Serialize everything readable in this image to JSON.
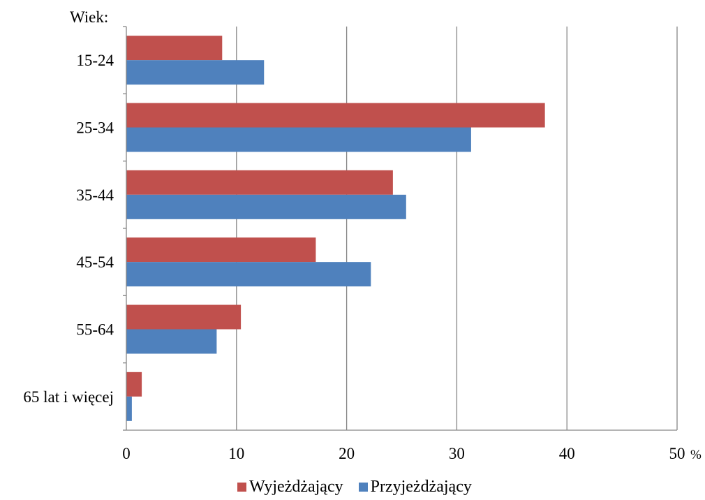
{
  "chart_data": {
    "type": "bar",
    "orientation": "horizontal",
    "category_axis_title": "Wiek:",
    "categories": [
      "15-24",
      "25-34",
      "35-44",
      "45-54",
      "55-64",
      "65 lat i więcej"
    ],
    "series": [
      {
        "name": "Wyjeżdżający",
        "color": "#c0504d",
        "values": [
          8.7,
          38.0,
          24.2,
          17.2,
          10.4,
          1.4
        ]
      },
      {
        "name": "Przyjeżdżający",
        "color": "#4f81bd",
        "values": [
          12.5,
          31.3,
          25.4,
          22.2,
          8.2,
          0.5
        ]
      }
    ],
    "xlim": [
      0,
      50
    ],
    "xticks": [
      "0",
      "10",
      "20",
      "30",
      "40",
      "50"
    ],
    "x_unit": "%",
    "grid": "vertical",
    "legend_position": "bottom"
  }
}
